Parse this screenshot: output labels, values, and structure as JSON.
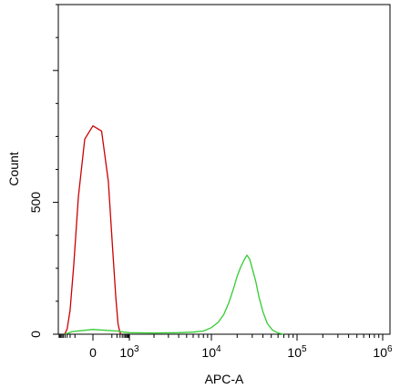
{
  "chart_data": {
    "type": "line",
    "title": "",
    "xlabel": "APC-A",
    "ylabel": "Count",
    "x_scale": "biexponential",
    "y_ticks": [
      "0",
      "500"
    ],
    "x_tick_labels": [
      {
        "value": 0,
        "text": "0"
      },
      {
        "value": 1000,
        "text": "10^3"
      },
      {
        "value": 10000,
        "text": "10^4"
      },
      {
        "value": 100000,
        "text": "10^5"
      },
      {
        "value": 1000000,
        "text": "10^6"
      }
    ],
    "ylim": [
      0,
      1250
    ],
    "grid": false,
    "series": [
      {
        "color": "#cc0000",
        "points": [
          [
            -420,
            0
          ],
          [
            -300,
            20
          ],
          [
            -200,
            90
          ],
          [
            -120,
            260
          ],
          [
            -60,
            520
          ],
          [
            -20,
            740
          ],
          [
            0,
            790
          ],
          [
            20,
            770
          ],
          [
            60,
            580
          ],
          [
            110,
            330
          ],
          [
            170,
            140
          ],
          [
            230,
            40
          ],
          [
            290,
            8
          ],
          [
            340,
            0
          ]
        ]
      },
      {
        "color": "#33cc33",
        "points": [
          [
            -400,
            0
          ],
          [
            -150,
            10
          ],
          [
            0,
            18
          ],
          [
            200,
            12
          ],
          [
            500,
            8
          ],
          [
            1000,
            6
          ],
          [
            2000,
            5
          ],
          [
            4000,
            6
          ],
          [
            6000,
            8
          ],
          [
            8000,
            12
          ],
          [
            10000,
            25
          ],
          [
            12000,
            45
          ],
          [
            14000,
            75
          ],
          [
            16000,
            120
          ],
          [
            18000,
            170
          ],
          [
            20000,
            220
          ],
          [
            22000,
            255
          ],
          [
            24000,
            280
          ],
          [
            26000,
            300
          ],
          [
            28000,
            285
          ],
          [
            30000,
            250
          ],
          [
            33000,
            200
          ],
          [
            36000,
            140
          ],
          [
            40000,
            85
          ],
          [
            45000,
            40
          ],
          [
            52000,
            15
          ],
          [
            60000,
            5
          ],
          [
            70000,
            0
          ]
        ]
      }
    ]
  }
}
